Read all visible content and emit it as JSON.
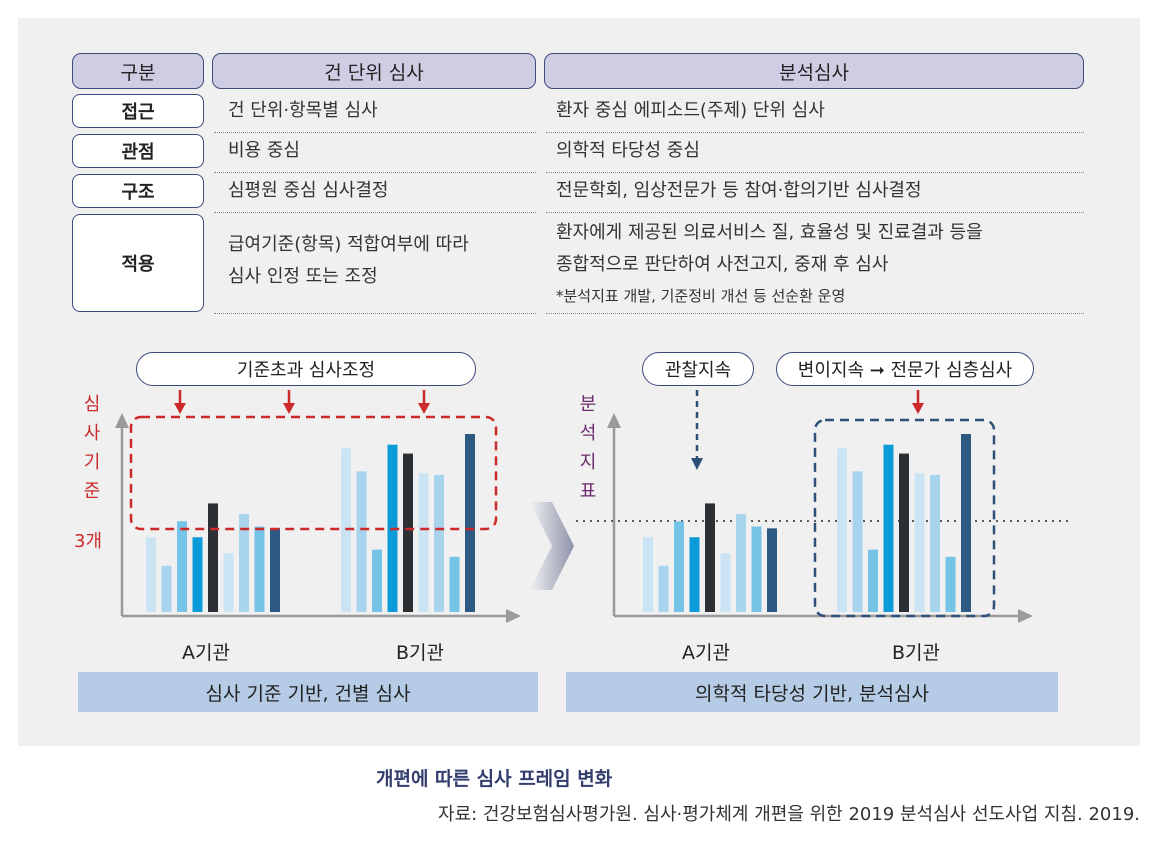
{
  "table": {
    "headers": {
      "category": "구분",
      "case_review": "건 단위 심사",
      "analysis_review": "분석심사"
    },
    "rows": [
      {
        "label": "접근",
        "case_review": [
          "건 단위·항목별 심사"
        ],
        "analysis_review": [
          "환자 중심 에피소드(주제) 단위 심사"
        ]
      },
      {
        "label": "관점",
        "case_review": [
          "비용 중심"
        ],
        "analysis_review": [
          "의학적 타당성 중심"
        ]
      },
      {
        "label": "구조",
        "case_review": [
          "심평원 중심 심사결정"
        ],
        "analysis_review": [
          "전문학회, 임상전문가 등 참여·합의기반 심사결정"
        ]
      },
      {
        "label": "적용",
        "case_review": [
          "급여기준(항목) 적합여부에 따라",
          "심사 인정 또는 조정"
        ],
        "analysis_review": [
          "환자에게 제공된 의료서비스 질, 효율성 및 진료결과 등을",
          "종합적으로 판단하여 사전고지, 중재 후 심사"
        ],
        "analysis_note": "*분석지표 개발, 기준정비 개선 등 선순환 운영"
      }
    ]
  },
  "left_diagram": {
    "callout": "기준초과 심사조정",
    "y_axis_label": [
      "심",
      "사",
      "기",
      "준"
    ],
    "threshold_label": "3개",
    "groups": [
      "A기관",
      "B기관"
    ],
    "footer": "심사 기준 기반, 건별 심사"
  },
  "right_diagram": {
    "callout_monitor": "관찰지속",
    "callout_deep": "변이지속 ➞ 전문가 심층심사",
    "y_axis_label": [
      "분",
      "석",
      "지",
      "표"
    ],
    "groups": [
      "A기관",
      "B기관"
    ],
    "footer": "의학적 타당성 기반, 분석심사"
  },
  "chart_data": [
    {
      "type": "bar",
      "categories": [
        "A기관",
        "B기관"
      ],
      "values_relative": {
        "A기관": [
          0.42,
          0.26,
          0.51,
          0.42,
          0.61,
          0.33,
          0.55,
          0.48,
          0.47
        ],
        "B기관": [
          0.92,
          0.79,
          0.35,
          0.94,
          0.89,
          0.78,
          0.77,
          0.31,
          1.0
        ]
      },
      "bar_colors": [
        "#cbe4f4",
        "#a8d4ee",
        "#76c3e8",
        "#0c9bd8",
        "#2c2f34",
        "#cbe4f4",
        "#a8d4ee",
        "#76c3e8",
        "#2d5982"
      ],
      "threshold": 0.51
    },
    {
      "type": "bar",
      "categories": [
        "A기관",
        "B기관"
      ],
      "values_relative": {
        "A기관": [
          0.42,
          0.26,
          0.51,
          0.42,
          0.61,
          0.33,
          0.55,
          0.48,
          0.47
        ],
        "B기관": [
          0.92,
          0.79,
          0.35,
          0.94,
          0.89,
          0.78,
          0.77,
          0.31,
          1.0
        ]
      },
      "bar_colors": [
        "#cbe4f4",
        "#a8d4ee",
        "#76c3e8",
        "#0c9bd8",
        "#2c2f34",
        "#cbe4f4",
        "#a8d4ee",
        "#76c3e8",
        "#2d5982"
      ],
      "threshold": 0.51
    }
  ],
  "caption": "개편에 따른 심사 프레임 변화",
  "source": "자료: 건강보험심사평가원. 심사·평가체계 개편을 위한 2019 분석심사 선도사업 지침. 2019.",
  "colors": {
    "header_fill": "#cfcde4",
    "border": "#3f4a7c",
    "red": "#cc2a2a",
    "navy": "#2d5982",
    "label_purple": "#6b2a6b",
    "footer_fill": "#b6cce6"
  }
}
